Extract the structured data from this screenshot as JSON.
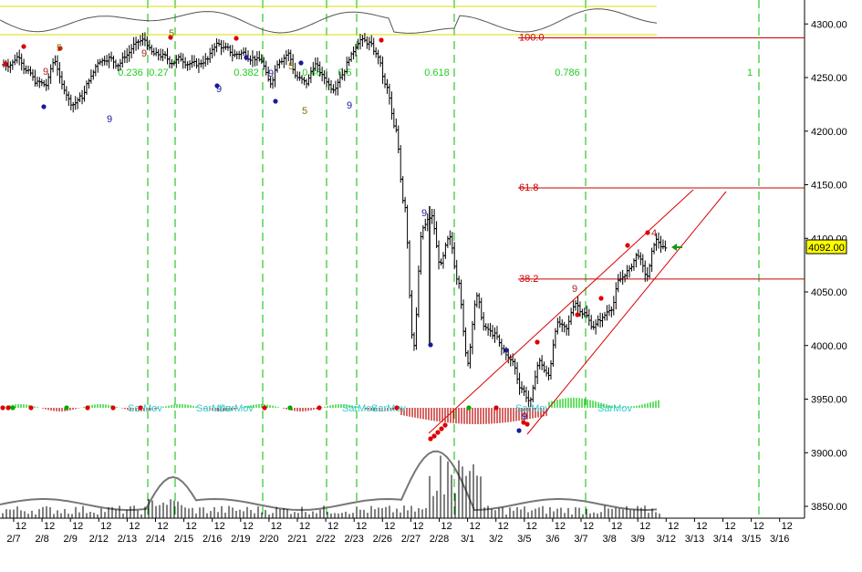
{
  "chart_data": {
    "type": "line",
    "price_axis": {
      "ticks": [
        3850,
        3900,
        3950,
        4000,
        4050,
        4100,
        4150,
        4200,
        4250,
        4300
      ],
      "range": [
        3835,
        4320
      ],
      "unit_labels": [
        "3850.00",
        "3900.00",
        "3950.00",
        "4000.00",
        "4050.00",
        "4100.00",
        "4150.00",
        "4200.00",
        "4250.00",
        "4300.00"
      ]
    },
    "last_price": {
      "value": 4092,
      "label": "4092.00",
      "color": "#ffff00"
    },
    "time_axis": {
      "session_label": "12",
      "sessions": [
        "2/7",
        "2/8",
        "2/9",
        "2/12",
        "2/13",
        "2/14",
        "2/15",
        "2/16",
        "2/19",
        "2/20",
        "2/21",
        "2/22",
        "2/23",
        "2/26",
        "2/27",
        "2/28",
        "3/1",
        "3/2",
        "3/5",
        "3/6",
        "3/7",
        "3/8",
        "3/9",
        "3/12",
        "3/13",
        "3/14",
        "3/15",
        "3/16"
      ]
    },
    "price_series": [
      4262,
      4270,
      4255,
      4245,
      4243,
      4266,
      4240,
      4225,
      4232,
      4250,
      4266,
      4268,
      4262,
      4271,
      4281,
      4285,
      4272,
      4270,
      4264,
      4268,
      4263,
      4262,
      4267,
      4281,
      4277,
      4271,
      4273,
      4268,
      4266,
      4245,
      4266,
      4272,
      4250,
      4245,
      4262,
      4250,
      4240,
      4253,
      4270,
      4285,
      4282,
      4270,
      4240,
      4200,
      4130,
      4000,
      4110,
      4120,
      4075,
      4100,
      4060,
      3985,
      4045,
      4015,
      4010,
      3995,
      3985,
      3960,
      3948,
      3985,
      3972,
      4020,
      4015,
      4040,
      4030,
      4018,
      4025,
      4035,
      4062,
      4070,
      4085,
      4065,
      4098,
      4090
    ],
    "resistance_lines": [
      {
        "label": "100.0",
        "value": 4287,
        "color": "#cc0000"
      },
      {
        "label": "61.8",
        "value": 4147,
        "color": "#cc0000"
      },
      {
        "label": "38.2",
        "value": 4062,
        "color": "#cc0000"
      }
    ],
    "fib_time_labels": [
      "0.236",
      "0.27",
      "0.382",
      "0.46",
      "0.5",
      "0.618",
      "0.786",
      "1"
    ],
    "count_marks": [
      {
        "text": "9",
        "color": "#aa2222"
      },
      {
        "text": "5",
        "color": "#8a6a00"
      },
      {
        "text": "9",
        "color": "#aa2222"
      },
      {
        "text": "5",
        "color": "#8a6a00"
      },
      {
        "text": "9",
        "color": "#1a1a99"
      },
      {
        "text": "9",
        "color": "#1a1a99"
      },
      {
        "text": "9",
        "color": "#1a1a99"
      },
      {
        "text": "5",
        "color": "#8a6a00"
      },
      {
        "text": "9",
        "color": "#1a1a99"
      },
      {
        "text": "9",
        "color": "#1a1a99"
      },
      {
        "text": "9",
        "color": "#aa2222"
      },
      {
        "text": "4",
        "color": "#aa2222"
      },
      {
        "text": "9",
        "color": "#1a1a99"
      },
      {
        "text": "5",
        "color": "#8a6a00"
      }
    ],
    "oscillator_labels": [
      "SarMov",
      "SarMov",
      "SarMov",
      "SarMov",
      "SarMov",
      "SarMov",
      "SarMov"
    ],
    "colors": {
      "price_bar": "#000000",
      "fib_line": "#cc0000",
      "time_grid": "#00bb00",
      "fib_time_text": "#22cc22",
      "channel": "#dd0000",
      "osc_band": "#dddd00",
      "hist_up": "#00cc00",
      "hist_down": "#bb0000"
    },
    "grid": false,
    "legend": "none"
  }
}
